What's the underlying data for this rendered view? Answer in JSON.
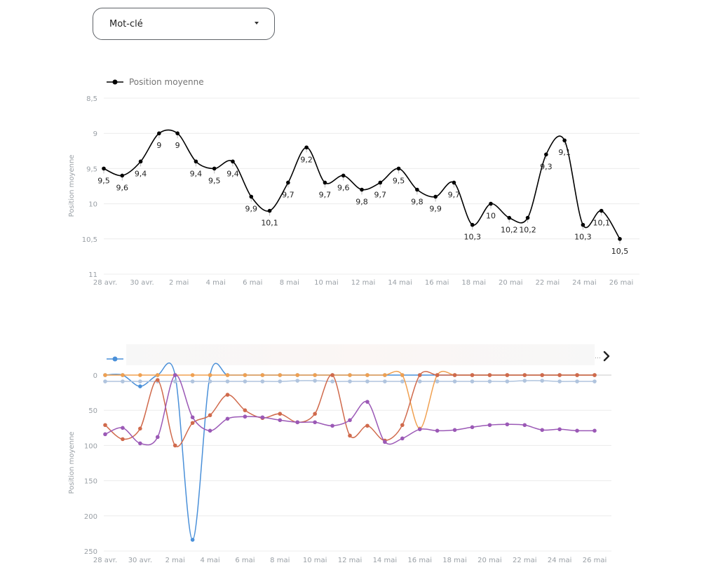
{
  "dropdown": {
    "label": "Mot-clé"
  },
  "chart_data": [
    {
      "type": "line",
      "legend": [
        "Position moyenne"
      ],
      "ylabel": "Position moyenne",
      "xlabel": "",
      "y_inverted": true,
      "ylim": [
        8.5,
        11
      ],
      "y_ticks": [
        "8,5",
        "9",
        "9,5",
        "10",
        "10,5",
        "11"
      ],
      "y_tick_values": [
        8.5,
        9,
        9.5,
        10,
        10.5,
        11
      ],
      "x_ticks": [
        "28 avr.",
        "30 avr.",
        "2 mai",
        "4 mai",
        "6 mai",
        "8 mai",
        "10 mai",
        "12 mai",
        "14 mai",
        "16 mai",
        "18 mai",
        "20 mai",
        "22 mai",
        "24 mai",
        "26 mai"
      ],
      "categories": [
        "28 avr.",
        "29 avr.",
        "30 avr.",
        "1 mai",
        "2 mai",
        "3 mai",
        "4 mai",
        "5 mai",
        "6 mai",
        "7 mai",
        "8 mai",
        "9 mai",
        "10 mai",
        "11 mai",
        "12 mai",
        "13 mai",
        "14 mai",
        "15 mai",
        "16 mai",
        "17 mai",
        "18 mai",
        "19 mai",
        "20 mai",
        "21 mai",
        "22 mai",
        "23 mai",
        "24 mai",
        "25 mai",
        "26 mai"
      ],
      "series": [
        {
          "name": "Position moyenne",
          "color": "#000000",
          "values": [
            9.5,
            9.6,
            9.4,
            9,
            9,
            9.4,
            9.5,
            9.4,
            9.9,
            10.1,
            9.7,
            9.2,
            9.7,
            9.6,
            9.8,
            9.7,
            9.5,
            9.8,
            9.9,
            9.7,
            10.3,
            10,
            10.2,
            10.2,
            9.3,
            9.1,
            10.3,
            10.1,
            10.5
          ],
          "labels": [
            "9,5",
            "9,6",
            "9,4",
            "9",
            "9",
            "9,4",
            "9,5",
            "9,4",
            "9,9",
            "10,1",
            "9,7",
            "9,2",
            "9,7",
            "9,6",
            "9,8",
            "9,7",
            "9,5",
            "9,8",
            "9,9",
            "9,7",
            "10,3",
            "10",
            "10,2",
            "10,2",
            "9,3",
            "9,1",
            "10,3",
            "10,1",
            "10,5"
          ]
        }
      ]
    },
    {
      "type": "line",
      "ylabel": "Position moyenne",
      "xlabel": "",
      "y_inverted": true,
      "ylim": [
        0,
        250
      ],
      "y_ticks": [
        "0",
        "50",
        "100",
        "150",
        "200",
        "250"
      ],
      "y_tick_values": [
        0,
        50,
        100,
        150,
        200,
        250
      ],
      "x_ticks": [
        "28 avr.",
        "30 avr.",
        "2 mai",
        "4 mai",
        "6 mai",
        "8 mai",
        "10 mai",
        "12 mai",
        "14 mai",
        "16 mai",
        "18 mai",
        "20 mai",
        "22 mai",
        "24 mai",
        "26 mai"
      ],
      "categories": [
        "28 avr.",
        "29 avr.",
        "30 avr.",
        "1 mai",
        "2 mai",
        "3 mai",
        "4 mai",
        "5 mai",
        "6 mai",
        "7 mai",
        "8 mai",
        "9 mai",
        "10 mai",
        "11 mai",
        "12 mai",
        "13 mai",
        "14 mai",
        "15 mai",
        "16 mai",
        "17 mai",
        "18 mai",
        "19 mai",
        "20 mai",
        "21 mai",
        "22 mai",
        "23 mai",
        "24 mai",
        "25 mai",
        "26 mai"
      ],
      "series": [
        {
          "color": "#4a90d9",
          "values": [
            0,
            0,
            16,
            0,
            0,
            234,
            0,
            0,
            0,
            0,
            0,
            0,
            0,
            0,
            0,
            0,
            0,
            0,
            0,
            0,
            0,
            0,
            0,
            0,
            0,
            0,
            0,
            0,
            0
          ]
        },
        {
          "color": "#b0c4de",
          "values": [
            9,
            9,
            9,
            9,
            9,
            9,
            9,
            9,
            9,
            9,
            9,
            8,
            8,
            9,
            9,
            9,
            9,
            9,
            9,
            9,
            9,
            9,
            9,
            9,
            8,
            8,
            9,
            9,
            9
          ]
        },
        {
          "color": "#f0a050",
          "values": [
            0,
            0,
            0,
            0,
            0,
            0,
            0,
            0,
            0,
            0,
            0,
            0,
            0,
            0,
            0,
            0,
            0,
            0,
            76,
            0,
            0,
            0,
            0,
            0,
            0,
            0,
            0,
            0,
            0
          ]
        },
        {
          "color": "#d06a4c",
          "values": [
            71,
            91,
            76,
            7,
            100,
            68,
            57,
            28,
            50,
            61,
            55,
            67,
            55,
            0,
            86,
            72,
            93,
            71,
            0,
            0,
            0,
            0,
            0,
            0,
            0,
            0,
            0,
            0,
            0
          ]
        },
        {
          "color": "#9b59b6",
          "values": [
            84,
            75,
            97,
            88,
            0,
            60,
            79,
            62,
            59,
            60,
            64,
            67,
            67,
            72,
            64,
            38,
            95,
            90,
            77,
            79,
            78,
            74,
            71,
            70,
            71,
            78,
            77,
            79,
            79
          ]
        }
      ]
    }
  ]
}
